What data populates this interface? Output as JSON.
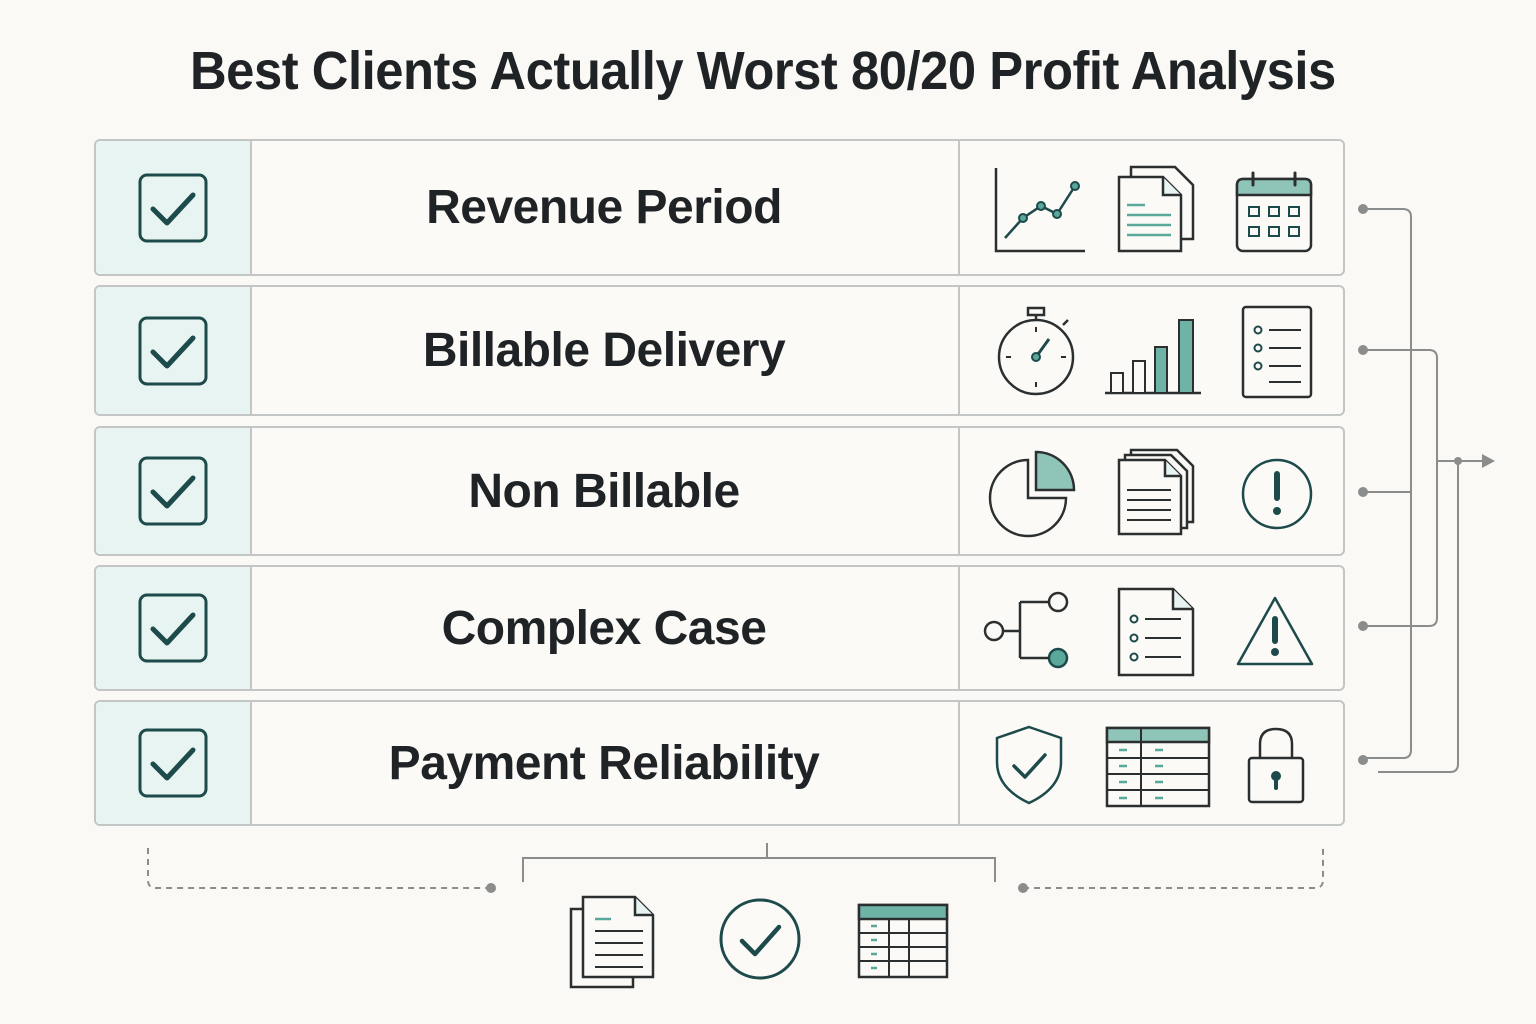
{
  "title": "Best Clients Actually Worst 80/20 Profit Analysis",
  "rows": [
    {
      "label": "Revenue Period",
      "checked": true,
      "icons": [
        "line-chart-icon",
        "documents-icon",
        "calendar-icon"
      ]
    },
    {
      "label": "Billable Delivery",
      "checked": true,
      "icons": [
        "stopwatch-icon",
        "bar-chart-icon",
        "checklist-icon"
      ]
    },
    {
      "label": "Non Billable",
      "checked": true,
      "icons": [
        "pie-chart-icon",
        "documents-icon",
        "alert-circle-icon"
      ]
    },
    {
      "label": "Complex Case",
      "checked": true,
      "icons": [
        "branch-icon",
        "list-document-icon",
        "warning-triangle-icon"
      ]
    },
    {
      "label": "Payment Reliability",
      "checked": true,
      "icons": [
        "shield-check-icon",
        "table-icon",
        "lock-icon"
      ]
    }
  ],
  "bottom_icons": [
    "documents-icon",
    "check-circle-icon",
    "table-icon"
  ],
  "colors": {
    "accent": "#5aa89a",
    "dark": "#1d4a4a",
    "line": "#8a8d8c",
    "border": "#c3c6c4",
    "check_bg": "#e8f4f1"
  }
}
